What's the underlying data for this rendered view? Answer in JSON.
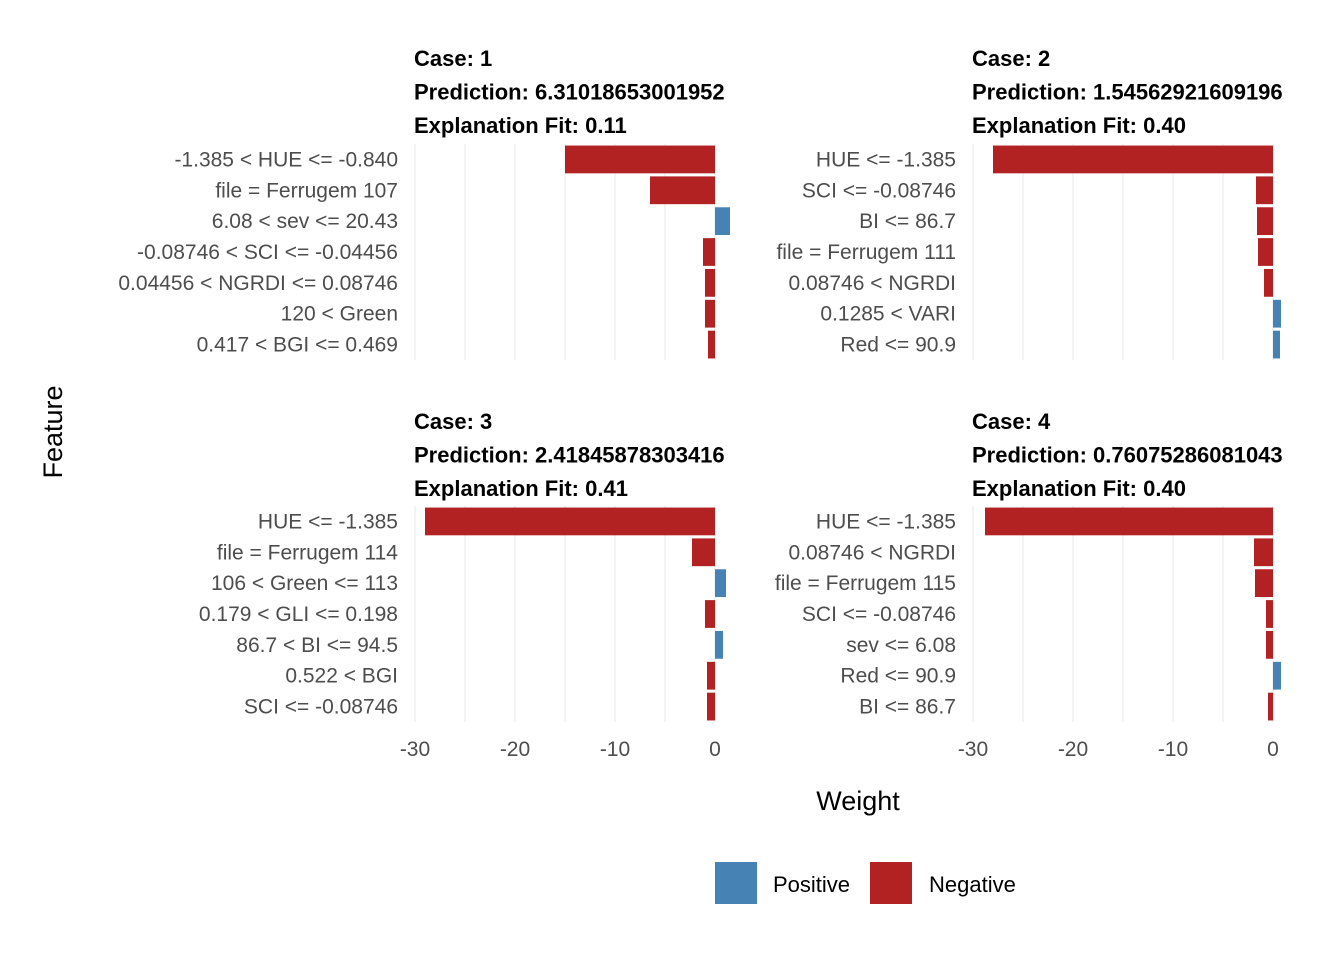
{
  "chart_data": {
    "type": "bar",
    "orientation": "horizontal",
    "facet_layout": "2x2",
    "xlabel": "Weight",
    "ylabel": "Feature",
    "xlim": [
      -30,
      1
    ],
    "x_ticks": [
      -30,
      -20,
      -10,
      0
    ],
    "grid": true,
    "legend": {
      "position": "bottom",
      "entries": [
        {
          "name": "Positive",
          "color": "#4682b4"
        },
        {
          "name": "Negative",
          "color": "#b22222"
        }
      ]
    },
    "panels": [
      {
        "case_label": "Case: 1",
        "prediction_label": "Prediction: 6.31018653001952",
        "fit_label": "Explanation Fit: 0.11",
        "features": [
          {
            "label": "-1.385 < HUE <= -0.840",
            "weight": -15.0
          },
          {
            "label": "file = Ferrugem 107",
            "weight": -6.5
          },
          {
            "label": "6.08 < sev <= 20.43",
            "weight": 1.5
          },
          {
            "label": "-0.08746 < SCI <= -0.04456",
            "weight": -1.2
          },
          {
            "label": "0.04456 < NGRDI <= 0.08746",
            "weight": -1.0
          },
          {
            "label": "120 < Green",
            "weight": -1.0
          },
          {
            "label": "0.417 < BGI <= 0.469",
            "weight": -0.7
          }
        ]
      },
      {
        "case_label": "Case: 2",
        "prediction_label": "Prediction: 1.54562921609196",
        "fit_label": "Explanation Fit: 0.40",
        "features": [
          {
            "label": "HUE <= -1.385",
            "weight": -28.0
          },
          {
            "label": "SCI <= -0.08746",
            "weight": -1.7
          },
          {
            "label": "BI <= 86.7",
            "weight": -1.6
          },
          {
            "label": "file = Ferrugem 111",
            "weight": -1.5
          },
          {
            "label": "0.08746 < NGRDI",
            "weight": -0.9
          },
          {
            "label": "0.1285 < VARI",
            "weight": 0.8
          },
          {
            "label": "Red <= 90.9",
            "weight": 0.7
          }
        ]
      },
      {
        "case_label": "Case: 3",
        "prediction_label": "Prediction: 2.41845878303416",
        "fit_label": "Explanation Fit: 0.41",
        "features": [
          {
            "label": "HUE <= -1.385",
            "weight": -29.0
          },
          {
            "label": "file = Ferrugem 114",
            "weight": -2.3
          },
          {
            "label": "106 < Green <= 113",
            "weight": 1.1
          },
          {
            "label": "0.179 < GLI <= 0.198",
            "weight": -1.0
          },
          {
            "label": "86.7 < BI <= 94.5",
            "weight": 0.8
          },
          {
            "label": "0.522 < BGI",
            "weight": -0.8
          },
          {
            "label": "SCI <= -0.08746",
            "weight": -0.8
          }
        ]
      },
      {
        "case_label": "Case: 4",
        "prediction_label": "Prediction: 0.76075286081043",
        "fit_label": "Explanation Fit: 0.40",
        "features": [
          {
            "label": "HUE <= -1.385",
            "weight": -28.8
          },
          {
            "label": "0.08746 < NGRDI",
            "weight": -1.9
          },
          {
            "label": "file = Ferrugem 115",
            "weight": -1.8
          },
          {
            "label": "SCI <= -0.08746",
            "weight": -0.7
          },
          {
            "label": "sev <= 6.08",
            "weight": -0.7
          },
          {
            "label": "Red <= 90.9",
            "weight": 0.8
          },
          {
            "label": "BI <= 86.7",
            "weight": -0.5
          }
        ]
      }
    ]
  }
}
